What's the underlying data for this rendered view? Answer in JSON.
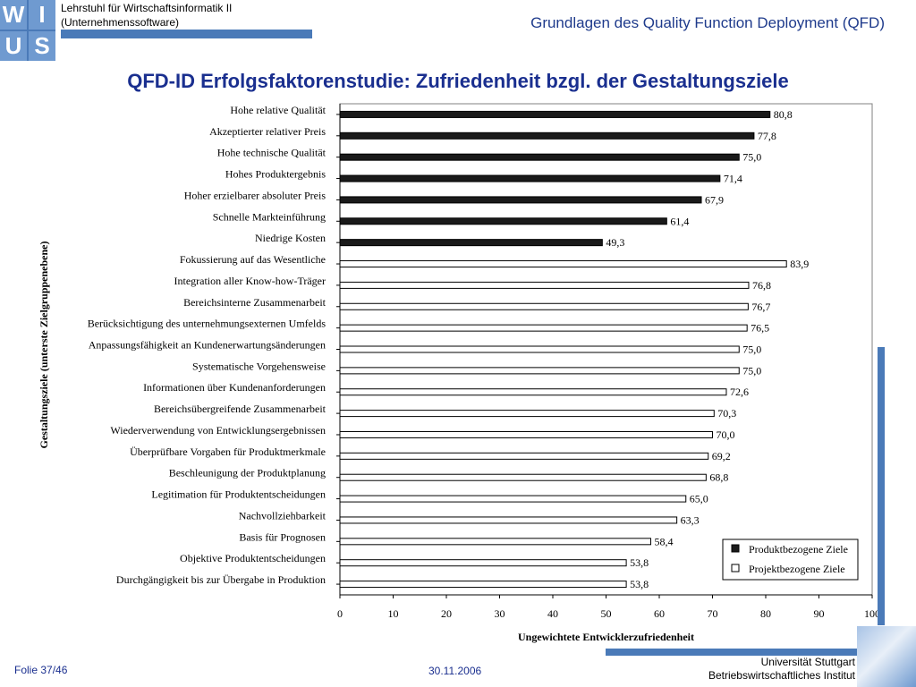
{
  "header": {
    "chair_line1": "Lehrstuhl für Wirtschaftsinformatik II",
    "chair_line2": "(Unternehmenssoftware)",
    "topic": "Grundlagen des Quality Function Deployment (QFD)",
    "logo_letters": [
      "W",
      "I",
      "U",
      "S"
    ]
  },
  "slide_title": "QFD-ID Erfolgsfaktorenstudie: Zufriedenheit bzgl. der Gestaltungsziele",
  "colors": {
    "accent": "#4a7ab8",
    "title": "#1a2f8f",
    "dark_bar": "#1a1a1a",
    "light_bar": "#ffffff"
  },
  "chart_data": {
    "type": "bar",
    "orientation": "horizontal",
    "title": "",
    "xlabel": "Ungewichtete Entwicklerzufriedenheit",
    "ylabel": "Gestaltungsziele (unterste Zielgruppenebene)",
    "xlim": [
      0,
      100
    ],
    "xticks": [
      0,
      10,
      20,
      30,
      40,
      50,
      60,
      70,
      80,
      90,
      100
    ],
    "grid": false,
    "legend_position": "bottom-right",
    "series": [
      {
        "name": "Produktbezogene Ziele",
        "color": "#1a1a1a"
      },
      {
        "name": "Projektbezogene Ziele",
        "color": "#ffffff"
      }
    ],
    "categories": [
      "Hohe relative Qualität",
      "Akzeptierter relativer Preis",
      "Hohe technische Qualität",
      "Hohes Produktergebnis",
      "Hoher erzielbarer absoluter Preis",
      "Schnelle Markteinführung",
      "Niedrige Kosten",
      "Fokussierung auf das Wesentliche",
      "Integration aller Know-how-Träger",
      "Bereichsinterne Zusammenarbeit",
      "Berücksichtigung des unternehmungsexternen Umfelds",
      "Anpassungsfähigkeit  an Kundenerwartungsänderungen",
      "Systematische Vorgehensweise",
      "Informationen über Kundenanforderungen",
      "Bereichsübergreifende Zusammenarbeit",
      "Wiederverwendung von Entwicklungsergebnissen",
      "Überprüfbare Vorgaben für Produktmerkmale",
      "Beschleunigung der Produktplanung",
      "Legitimation für Produktentscheidungen",
      "Nachvollziehbarkeit",
      "Basis für Prognosen",
      "Objektive Produktentscheidungen",
      "Durchgängigkeit bis zur Übergabe in Produktion"
    ],
    "values": [
      80.8,
      77.8,
      75.0,
      71.4,
      67.9,
      61.4,
      49.3,
      83.9,
      76.8,
      76.7,
      76.5,
      75.0,
      75.0,
      72.6,
      70.3,
      70.0,
      69.2,
      68.8,
      65.0,
      63.3,
      58.4,
      53.8,
      53.8
    ],
    "value_labels": [
      "80,8",
      "77,8",
      "75,0",
      "71,4",
      "67,9",
      "61,4",
      "49,3",
      "83,9",
      "76,8",
      "76,7",
      "76,5",
      "75,0",
      "75,0",
      "72,6",
      "70,3",
      "70,0",
      "69,2",
      "68,8",
      "65,0",
      "63,3",
      "58,4",
      "53,8",
      "53,8"
    ],
    "series_index": [
      0,
      0,
      0,
      0,
      0,
      0,
      0,
      1,
      1,
      1,
      1,
      1,
      1,
      1,
      1,
      1,
      1,
      1,
      1,
      1,
      1,
      1,
      1
    ]
  },
  "footer": {
    "slide_number": "Folie 37/46",
    "date": "30.11.2006",
    "university": "Universität Stuttgart",
    "institute": "Betriebswirtschaftliches Institut"
  }
}
